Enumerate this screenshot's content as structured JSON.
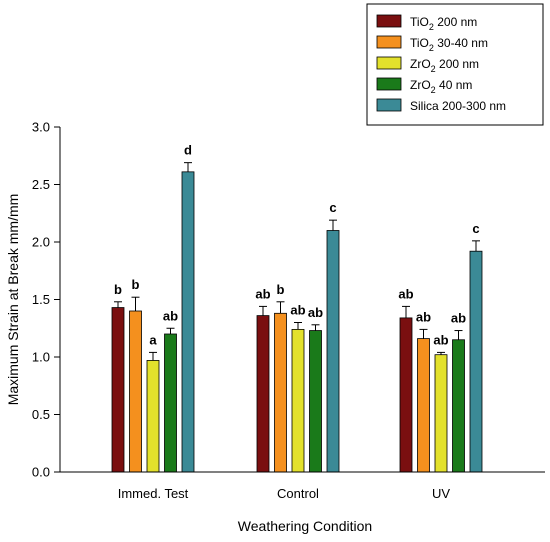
{
  "chart_data": {
    "type": "bar",
    "xlabel": "Weathering Condition",
    "ylabel": "Maximum Strain at Break mm/mm",
    "ylim": [
      0.0,
      3.0
    ],
    "yticks": [
      "0.0",
      "0.5",
      "1.0",
      "1.5",
      "2.0",
      "2.5",
      "3.0"
    ],
    "categories": [
      "Immed. Test",
      "Control",
      "UV"
    ],
    "legend_position": "top-right",
    "series": [
      {
        "name": "TiO2 200 nm",
        "legend_main": "TiO",
        "legend_sub": "2",
        "legend_rest": " 200 nm",
        "color": "#7a0f10",
        "values": [
          1.43,
          1.36,
          1.34
        ],
        "errors": [
          0.05,
          0.08,
          0.1
        ],
        "letters": [
          "b",
          "ab",
          "ab"
        ]
      },
      {
        "name": "TiO2 30-40 nm",
        "legend_main": "TiO",
        "legend_sub": "2",
        "legend_rest": " 30-40 nm",
        "color": "#f4901e",
        "values": [
          1.4,
          1.38,
          1.16
        ],
        "errors": [
          0.12,
          0.1,
          0.08
        ],
        "letters": [
          "b",
          "b",
          "ab"
        ]
      },
      {
        "name": "ZrO2 200 nm",
        "legend_main": "ZrO",
        "legend_sub": "2",
        "legend_rest": " 200 nm",
        "color": "#e3e12c",
        "values": [
          0.97,
          1.24,
          1.02
        ],
        "errors": [
          0.07,
          0.06,
          0.02
        ],
        "letters": [
          "a",
          "ab",
          "ab"
        ]
      },
      {
        "name": "ZrO2 40 nm",
        "legend_main": "ZrO",
        "legend_sub": "2",
        "legend_rest": "  40 nm",
        "color": "#1a7a1a",
        "values": [
          1.2,
          1.23,
          1.15
        ],
        "errors": [
          0.05,
          0.05,
          0.08
        ],
        "letters": [
          "ab",
          "ab",
          "ab"
        ]
      },
      {
        "name": "Silica 200-300 nm",
        "legend_main": "Silica 200-300 nm",
        "legend_sub": "",
        "legend_rest": "",
        "color": "#3b8a96",
        "values": [
          2.61,
          2.1,
          1.92
        ],
        "errors": [
          0.08,
          0.09,
          0.09
        ],
        "letters": [
          "d",
          "c",
          "c"
        ]
      }
    ]
  }
}
